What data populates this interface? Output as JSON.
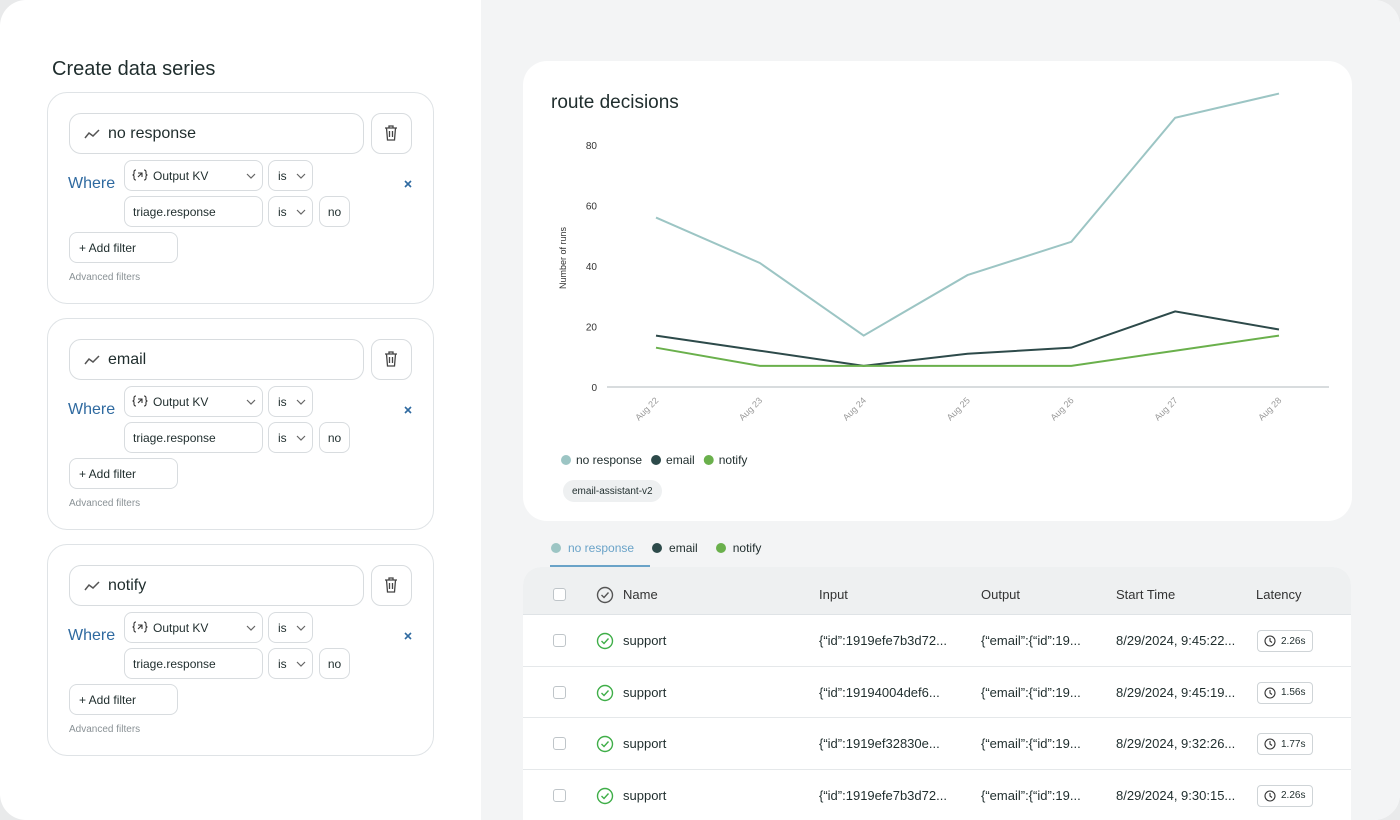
{
  "panel": {
    "title": "Create data series",
    "series": [
      {
        "name": "no response",
        "where": "Where",
        "filters": [
          {
            "field": "Output KV",
            "op": "is"
          },
          {
            "field": "triage.response",
            "op": "is",
            "value": "no"
          }
        ],
        "add_filter": "+ Add filter",
        "advanced": "Advanced filters"
      },
      {
        "name": "email",
        "where": "Where",
        "filters": [
          {
            "field": "Output KV",
            "op": "is"
          },
          {
            "field": "triage.response",
            "op": "is",
            "value": "no"
          }
        ],
        "add_filter": "+ Add filter",
        "advanced": "Advanced filters"
      },
      {
        "name": "notify",
        "where": "Where",
        "filters": [
          {
            "field": "Output KV",
            "op": "is"
          },
          {
            "field": "triage.response",
            "op": "is",
            "value": "no"
          }
        ],
        "add_filter": "+ Add filter",
        "advanced": "Advanced filters"
      }
    ]
  },
  "chart_data": {
    "type": "line",
    "title": "route decisions",
    "ylabel": "Number of runs",
    "categories": [
      "Aug 22",
      "Aug 23",
      "Aug 24",
      "Aug 25",
      "Aug 26",
      "Aug 27",
      "Aug 28"
    ],
    "series": [
      {
        "name": "no response",
        "color": "#9cc5c4",
        "values": [
          56,
          41,
          17,
          37,
          48,
          89,
          97
        ]
      },
      {
        "name": "email",
        "color": "#2d4a4a",
        "values": [
          17,
          12,
          7,
          11,
          13,
          25,
          19
        ]
      },
      {
        "name": "notify",
        "color": "#6ab04c",
        "values": [
          13,
          7,
          7,
          7,
          7,
          12,
          17
        ]
      }
    ],
    "ylim": [
      0,
      100
    ],
    "yticks": [
      0,
      20,
      40,
      60,
      80
    ],
    "grid": false,
    "legend": "bottom",
    "tag": "email-assistant-v2"
  },
  "tabs": [
    "no response",
    "email",
    "notify"
  ],
  "table": {
    "columns": [
      "Name",
      "Input",
      "Output",
      "Start Time",
      "Latency"
    ],
    "rows": [
      [
        "support",
        "{“id”:1919efe7b3d72...",
        "{“email”:{“id”:19...",
        "8/29/2024, 9:45:22...",
        "2.26s"
      ],
      [
        "support",
        "{“id”:19194004def6...",
        "{“email”:{“id”:19...",
        "8/29/2024, 9:45:19...",
        "1.56s"
      ],
      [
        "support",
        "{“id”:1919ef32830e...",
        "{“email”:{“id”:19...",
        "8/29/2024, 9:32:26...",
        "1.77s"
      ],
      [
        "support",
        "{“id”:1919efe7b3d72...",
        "{“email”:{“id”:19...",
        "8/29/2024, 9:30:15...",
        "2.26s"
      ]
    ]
  }
}
